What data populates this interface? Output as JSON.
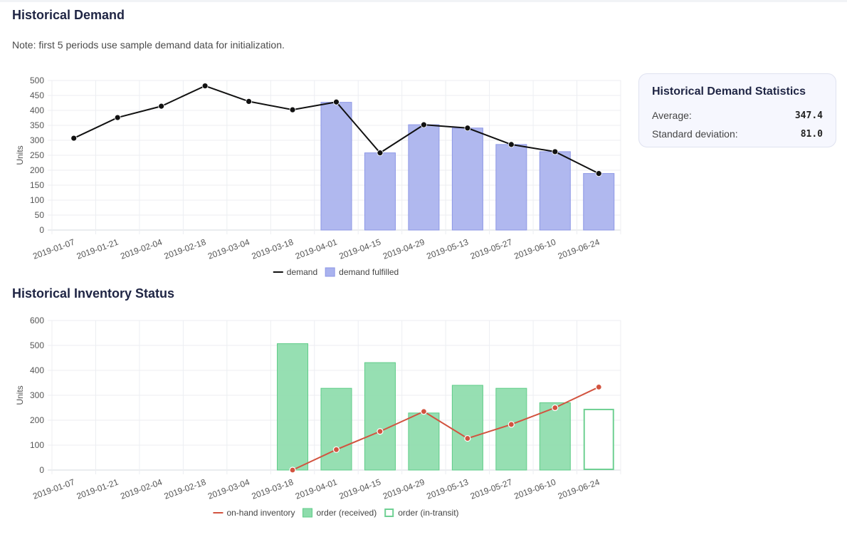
{
  "sections": {
    "demand_title": "Historical Demand",
    "note": "Note: first 5 periods use sample demand data for initialization.",
    "inventory_title": "Historical Inventory Status"
  },
  "stats": {
    "title": "Historical Demand Statistics",
    "average_label": "Average:",
    "average_value": "347.4",
    "std_label": "Standard deviation:",
    "std_value": "81.0"
  },
  "chart_data": [
    {
      "type": "bar",
      "title": "",
      "xlabel": "",
      "ylabel": "Units",
      "ylim": [
        0,
        500
      ],
      "yticks": [
        0,
        50,
        100,
        150,
        200,
        250,
        300,
        350,
        400,
        450,
        500
      ],
      "grid": true,
      "legend_position": "bottom",
      "categories": [
        "2019-01-07",
        "2019-01-21",
        "2019-02-04",
        "2019-02-18",
        "2019-03-04",
        "2019-03-18",
        "2019-04-01",
        "2019-04-15",
        "2019-04-29",
        "2019-05-13",
        "2019-05-27",
        "2019-06-10",
        "2019-06-24"
      ],
      "series": [
        {
          "name": "demand",
          "kind": "line",
          "color": "#111111",
          "values": [
            307,
            376,
            414,
            482,
            430,
            402,
            428,
            258,
            352,
            341,
            286,
            262,
            189
          ]
        },
        {
          "name": "demand fulfilled",
          "kind": "bar",
          "color": "#a9b2ee",
          "values": [
            null,
            null,
            null,
            null,
            null,
            null,
            427,
            258,
            352,
            341,
            286,
            262,
            189
          ]
        }
      ]
    },
    {
      "type": "bar",
      "title": "",
      "xlabel": "",
      "ylabel": "Units",
      "ylim": [
        0,
        600
      ],
      "yticks": [
        0,
        100,
        200,
        300,
        400,
        500,
        600
      ],
      "grid": true,
      "legend_position": "bottom",
      "categories": [
        "2019-01-07",
        "2019-01-21",
        "2019-02-04",
        "2019-02-18",
        "2019-03-04",
        "2019-03-18",
        "2019-04-01",
        "2019-04-15",
        "2019-04-29",
        "2019-05-13",
        "2019-05-27",
        "2019-06-10",
        "2019-06-24"
      ],
      "series": [
        {
          "name": "on-hand inventory",
          "kind": "line",
          "color": "#d2533f",
          "values": [
            null,
            null,
            null,
            null,
            null,
            0,
            82,
            155,
            235,
            127,
            183,
            250,
            333
          ]
        },
        {
          "name": "order (received)",
          "kind": "bar",
          "color": "#8ddcab",
          "values": [
            null,
            null,
            null,
            null,
            null,
            507,
            328,
            431,
            229,
            340,
            328,
            270,
            null
          ]
        },
        {
          "name": "order (in-transit)",
          "kind": "bar-outline",
          "color": "#6fd093",
          "values": [
            null,
            null,
            null,
            null,
            null,
            null,
            null,
            null,
            null,
            null,
            null,
            null,
            243
          ]
        }
      ]
    }
  ]
}
